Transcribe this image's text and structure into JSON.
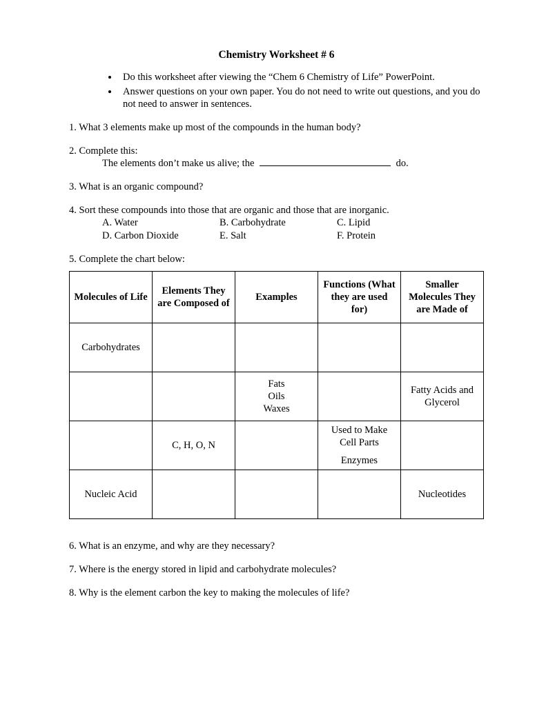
{
  "title": "Chemistry Worksheet # 6",
  "instructions": [
    "Do this worksheet after viewing the “Chem 6 Chemistry of Life” PowerPoint.",
    "Answer questions on your own paper. You do not need to write out questions, and you do not need to answer in sentences."
  ],
  "q1": "1. What 3 elements make up most of the compounds in the human body?",
  "q2_lead": "2. Complete this:",
  "q2_sentence_pre": "The elements don’t make us alive; the ",
  "q2_sentence_post": " do.",
  "q3": "3. What is an organic compound?",
  "q4_lead": "4. Sort these compounds into those that are organic and those that are inorganic.",
  "q4_options": {
    "a": "A. Water",
    "b": "B. Carbohydrate",
    "c": "C. Lipid",
    "d": "D. Carbon Dioxide",
    "e": "E. Salt",
    "f": "F. Protein"
  },
  "q5_lead": "5. Complete the chart below:",
  "chart": {
    "headers": {
      "c1": "Molecules of Life",
      "c2": "Elements They are Composed of",
      "c3": "Examples",
      "c4": "Functions (What they are used for)",
      "c5": "Smaller Molecules They are Made of"
    },
    "rows": [
      {
        "c1": "Carbohydrates",
        "c2": "",
        "c3": "",
        "c4": "",
        "c5": ""
      },
      {
        "c1": "",
        "c2": "",
        "c3": "Fats\nOils\nWaxes",
        "c4": "",
        "c5": "Fatty Acids and Glycerol"
      },
      {
        "c1": "",
        "c2": "C, H, O, N",
        "c3": "",
        "c4": "Used to Make Cell Parts\n\nEnzymes",
        "c5": ""
      },
      {
        "c1": "Nucleic Acid",
        "c2": "",
        "c3": "",
        "c4": "",
        "c5": "Nucleotides"
      }
    ]
  },
  "q6": "6. What is an enzyme, and why are they necessary?",
  "q7": "7. Where is the energy stored in lipid and carbohydrate molecules?",
  "q8": "8. Why is the element carbon the key to making the molecules of life?"
}
